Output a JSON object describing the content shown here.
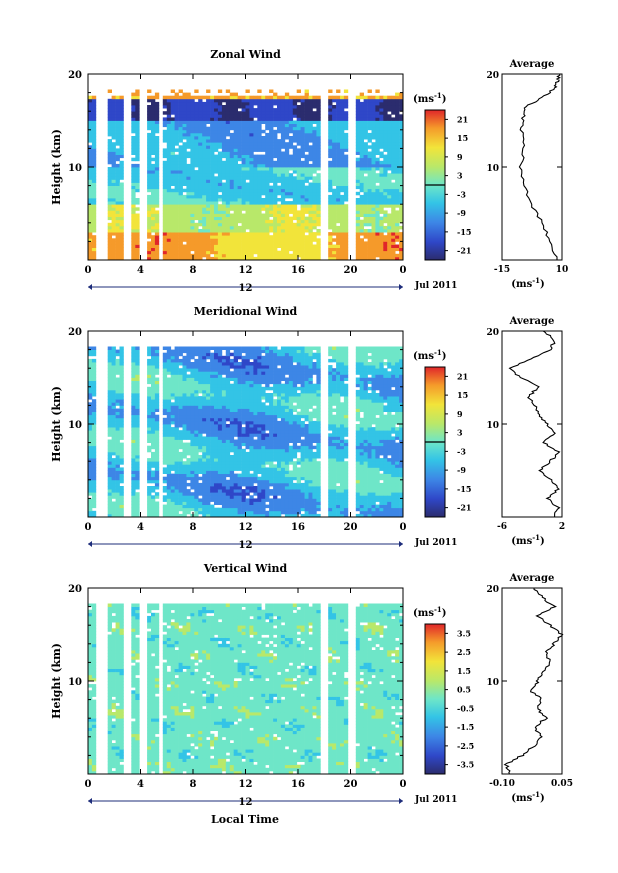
{
  "figure": {
    "xlabel_bottom": "Local Time",
    "date_label": "Jul 2011",
    "unit_label": "(ms",
    "unit_exp": "-1",
    "average_unit_label": "(ms",
    "average_unit_exp": "-1"
  },
  "chart_data": [
    {
      "type": "heatmap",
      "title": "Zonal Wind",
      "ylabel": "Height (km)",
      "xlabel": "Local Time",
      "x_ticks": [
        "0",
        "4",
        "8",
        "12",
        "16",
        "20",
        "0"
      ],
      "x_range": [
        0,
        24
      ],
      "x_mid_label": "12",
      "y_range": [
        0,
        20
      ],
      "y_ticks": [
        "10",
        "20"
      ],
      "colorbar": {
        "label": "(ms-1)",
        "ticks": [
          "21",
          "15",
          "9",
          "3",
          "-3",
          "-9",
          "-15",
          "-21"
        ],
        "range": [
          -24,
          24
        ],
        "contour_at": 0
      },
      "data_gaps_local_time": [
        [
          0.6,
          1.5
        ],
        [
          2.8,
          3.4
        ],
        [
          4.0,
          4.4
        ],
        [
          5.3,
          5.8
        ],
        [
          17.8,
          18.4
        ],
        [
          19.8,
          20.3
        ]
      ],
      "average_profile": {
        "title": "Average",
        "xlabel": "(ms-1)",
        "x_ticks": [
          "-15",
          "10"
        ],
        "x_range": [
          -15,
          10
        ],
        "y_range": [
          0,
          20
        ],
        "y_ticks": [
          "10",
          "20"
        ],
        "height_km": [
          0,
          2,
          4,
          6,
          8,
          10,
          12,
          14,
          15.5,
          16.5,
          17.5,
          18.5,
          19.2,
          20
        ],
        "value_ms": [
          8,
          5,
          2,
          -3,
          -6,
          -7,
          -6,
          -7,
          -6,
          -5,
          2,
          7,
          8,
          9
        ]
      }
    },
    {
      "type": "heatmap",
      "title": "Meridional Wind",
      "ylabel": "Height (km)",
      "xlabel": "Local Time",
      "x_ticks": [
        "0",
        "4",
        "8",
        "12",
        "16",
        "20",
        "0"
      ],
      "x_range": [
        0,
        24
      ],
      "x_mid_label": "12",
      "y_range": [
        0,
        20
      ],
      "y_ticks": [
        "10",
        "20"
      ],
      "colorbar": {
        "label": "(ms-1)",
        "ticks": [
          "21",
          "15",
          "9",
          "3",
          "-3",
          "-9",
          "-15",
          "-21"
        ],
        "range": [
          -24,
          24
        ],
        "contour_at": 0
      },
      "data_gaps_local_time": [
        [
          0.6,
          1.5
        ],
        [
          2.8,
          3.4
        ],
        [
          4.0,
          4.4
        ],
        [
          5.3,
          5.8
        ],
        [
          17.8,
          18.4
        ],
        [
          19.8,
          20.3
        ]
      ],
      "average_profile": {
        "title": "Average",
        "xlabel": "(ms-1)",
        "x_ticks": [
          "-6",
          "2"
        ],
        "x_range": [
          -6,
          2
        ],
        "y_range": [
          0,
          20
        ],
        "y_ticks": [
          "10",
          "20"
        ],
        "height_km": [
          0,
          1,
          2,
          3,
          4,
          5,
          6,
          7,
          8,
          9,
          10,
          11,
          12,
          13,
          14,
          15,
          16,
          17,
          18,
          19,
          20
        ],
        "value_ms": [
          1,
          1.5,
          0,
          1.5,
          0.5,
          -1,
          0.5,
          1.5,
          -0.5,
          1,
          0,
          -1,
          -1.5,
          -2.5,
          -1,
          -3.5,
          -5,
          -2,
          0.5,
          1,
          -0.5
        ]
      }
    },
    {
      "type": "heatmap",
      "title": "Vertical Wind",
      "ylabel": "Height (km)",
      "xlabel": "Local Time",
      "x_ticks": [
        "0",
        "4",
        "8",
        "12",
        "16",
        "20",
        "0"
      ],
      "x_range": [
        0,
        24
      ],
      "x_mid_label": "12",
      "y_range": [
        0,
        20
      ],
      "y_ticks": [
        "10",
        "20"
      ],
      "colorbar": {
        "label": "(ms-1)",
        "ticks": [
          "3.5",
          "2.5",
          "1.5",
          "0.5",
          "-0.5",
          "-1.5",
          "-2.5",
          "-3.5"
        ],
        "range": [
          -4,
          4
        ]
      },
      "data_gaps_local_time": [
        [
          0.6,
          1.5
        ],
        [
          2.8,
          3.4
        ],
        [
          4.0,
          4.4
        ],
        [
          5.3,
          5.8
        ],
        [
          17.8,
          18.4
        ],
        [
          19.8,
          20.3
        ]
      ],
      "average_profile": {
        "title": "Average",
        "xlabel": "(ms-1)",
        "x_ticks": [
          "-0.10",
          "0.05"
        ],
        "x_range": [
          -0.1,
          0.05
        ],
        "y_range": [
          0,
          20
        ],
        "y_ticks": [
          "10",
          "20"
        ],
        "height_km": [
          0,
          1,
          2,
          3,
          4,
          5,
          6,
          7,
          8,
          9,
          10,
          11,
          12,
          13,
          14,
          15,
          16,
          17,
          18,
          19,
          20
        ],
        "value_ms": [
          -0.08,
          -0.09,
          -0.05,
          -0.02,
          0.0,
          -0.02,
          0.01,
          -0.01,
          0.0,
          -0.03,
          -0.01,
          0.0,
          0.02,
          0.01,
          0.03,
          0.05,
          0.02,
          -0.01,
          0.03,
          0.0,
          -0.02
        ]
      }
    }
  ]
}
